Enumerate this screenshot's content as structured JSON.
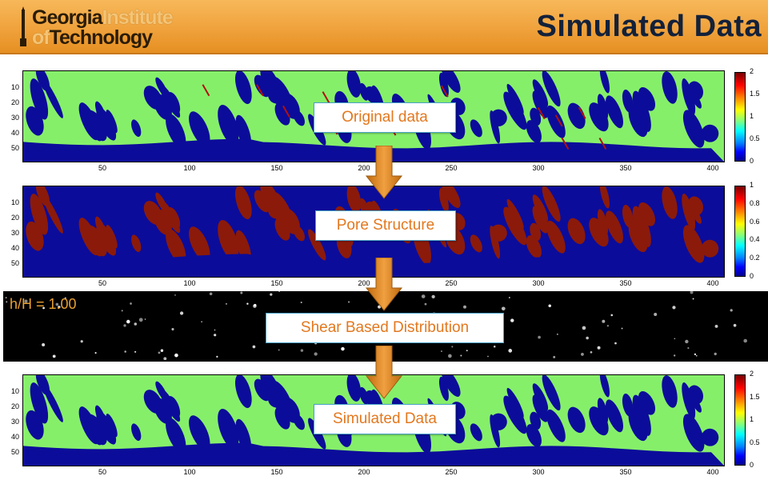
{
  "header": {
    "logo_line1_dark": "Georgia",
    "logo_line1_light": "Institute",
    "logo_line2_light": "of",
    "logo_line2_dark": "Technology",
    "title": "Simulated Data"
  },
  "labels": {
    "original": "Original data",
    "pore": "Pore Structure",
    "shear": "Shear Based Distribution",
    "simulated": "Simulated Data",
    "hH": "h/H = 1.00"
  },
  "axes": {
    "yticks": [
      "10",
      "20",
      "30",
      "40",
      "50"
    ],
    "xticks": [
      "50",
      "100",
      "150",
      "200",
      "250",
      "300",
      "350",
      "400"
    ]
  },
  "colorbars": {
    "original": [
      "2",
      "1.5",
      "1",
      "0.5",
      "0"
    ],
    "pore": [
      "1",
      "0.8",
      "0.6",
      "0.4",
      "0.2",
      "0"
    ],
    "simulated": [
      "2",
      "1.5",
      "1",
      "0.5",
      "0"
    ]
  },
  "colors": {
    "accent": "#e3781e",
    "header": "#f0a23c",
    "title": "#13213a",
    "green": "#86ef6a",
    "navy": "#0c0c9a",
    "maroon": "#8b1a0a"
  }
}
